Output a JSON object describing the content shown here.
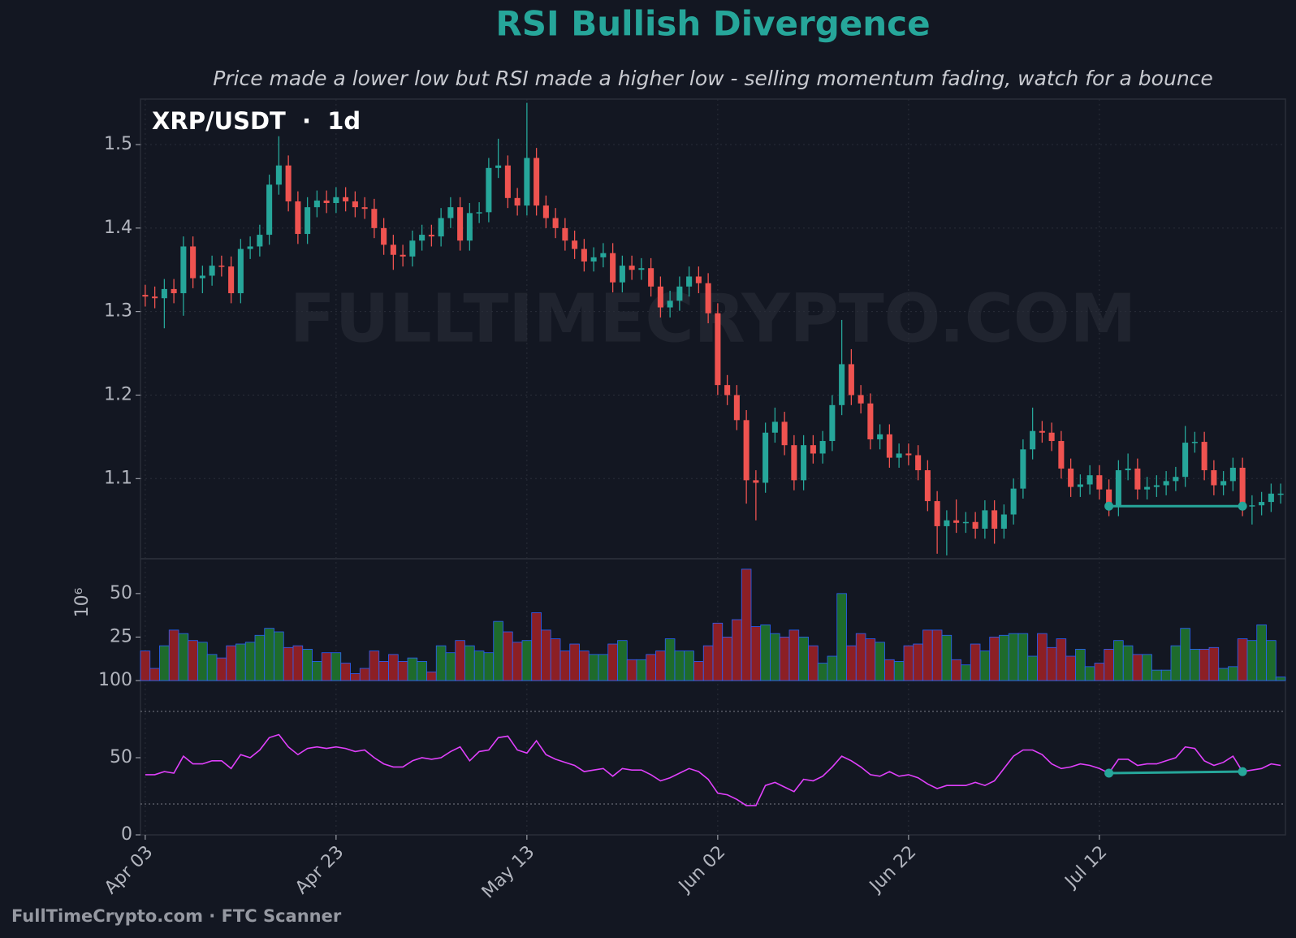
{
  "chart_data": {
    "type": "candlestick",
    "title": "RSI Bullish Divergence",
    "subtitle": "Price made a lower low but RSI made a higher low - selling momentum fading, watch for a bounce",
    "panel_label": "XRP/USDT  ·  1d",
    "watermark": "FULLTIMECRYPTO.COM",
    "footer": "FullTimeCrypto.com · FTC Scanner",
    "categories": [
      "Apr 03",
      null,
      null,
      null,
      null,
      null,
      null,
      null,
      null,
      null,
      null,
      null,
      null,
      null,
      null,
      null,
      null,
      null,
      null,
      null,
      "Apr 23",
      null,
      null,
      null,
      null,
      null,
      null,
      null,
      null,
      null,
      null,
      null,
      null,
      null,
      null,
      null,
      null,
      null,
      null,
      null,
      "May 13",
      null,
      null,
      null,
      null,
      null,
      null,
      null,
      null,
      null,
      null,
      null,
      null,
      null,
      null,
      null,
      null,
      null,
      null,
      null,
      "Jun 02",
      null,
      null,
      null,
      null,
      null,
      null,
      null,
      null,
      null,
      null,
      null,
      null,
      null,
      null,
      null,
      null,
      null,
      null,
      null,
      "Jun 22",
      null,
      null,
      null,
      null,
      null,
      null,
      null,
      null,
      null,
      null,
      null,
      null,
      null,
      null,
      null,
      null,
      null,
      null,
      null,
      "Jul 12",
      null,
      null,
      null,
      null,
      null,
      null,
      null,
      null,
      null,
      null,
      null,
      null,
      null,
      null,
      null,
      null,
      null,
      null,
      null
    ],
    "open": [
      1.32,
      1.318,
      1.316,
      1.327,
      1.322,
      1.378,
      1.34,
      1.343,
      1.355,
      1.354,
      1.322,
      1.375,
      1.378,
      1.392,
      1.452,
      1.475,
      1.432,
      1.393,
      1.425,
      1.433,
      1.43,
      1.437,
      1.432,
      1.425,
      1.423,
      1.4,
      1.38,
      1.368,
      1.366,
      1.385,
      1.392,
      1.39,
      1.412,
      1.425,
      1.385,
      1.418,
      1.419,
      1.472,
      1.475,
      1.436,
      1.427,
      1.484,
      1.427,
      1.412,
      1.4,
      1.385,
      1.375,
      1.36,
      1.365,
      1.37,
      1.335,
      1.355,
      1.35,
      1.352,
      1.33,
      1.305,
      1.313,
      1.33,
      1.342,
      1.334,
      1.298,
      1.212,
      1.2,
      1.17,
      1.098,
      1.095,
      1.155,
      1.168,
      1.14,
      1.098,
      1.14,
      1.13,
      1.145,
      1.188,
      1.237,
      1.2,
      1.19,
      1.147,
      1.153,
      1.125,
      1.13,
      1.128,
      1.11,
      1.073,
      1.043,
      1.05,
      1.047,
      1.048,
      1.04,
      1.062,
      1.04,
      1.057,
      1.088,
      1.135,
      1.157,
      1.155,
      1.145,
      1.112,
      1.09,
      1.093,
      1.104,
      1.087,
      1.067,
      1.11,
      1.112,
      1.087,
      1.09,
      1.092,
      1.097,
      1.102,
      1.143,
      1.144,
      1.11,
      1.092,
      1.097,
      1.113,
      1.067,
      1.068,
      1.072,
      1.082
    ],
    "high": [
      1.332,
      1.33,
      1.339,
      1.339,
      1.39,
      1.39,
      1.355,
      1.367,
      1.367,
      1.366,
      1.387,
      1.39,
      1.404,
      1.464,
      1.51,
      1.487,
      1.444,
      1.437,
      1.445,
      1.445,
      1.449,
      1.449,
      1.444,
      1.437,
      1.435,
      1.412,
      1.392,
      1.38,
      1.397,
      1.404,
      1.404,
      1.424,
      1.437,
      1.437,
      1.43,
      1.431,
      1.484,
      1.507,
      1.487,
      1.448,
      1.55,
      1.496,
      1.439,
      1.424,
      1.412,
      1.397,
      1.387,
      1.377,
      1.382,
      1.382,
      1.367,
      1.367,
      1.364,
      1.364,
      1.342,
      1.325,
      1.342,
      1.354,
      1.354,
      1.346,
      1.31,
      1.224,
      1.212,
      1.182,
      1.11,
      1.167,
      1.185,
      1.18,
      1.152,
      1.152,
      1.152,
      1.157,
      1.2,
      1.29,
      1.255,
      1.212,
      1.202,
      1.165,
      1.165,
      1.142,
      1.142,
      1.14,
      1.122,
      1.085,
      1.062,
      1.075,
      1.06,
      1.06,
      1.074,
      1.074,
      1.069,
      1.1,
      1.147,
      1.185,
      1.169,
      1.167,
      1.157,
      1.124,
      1.105,
      1.116,
      1.116,
      1.099,
      1.122,
      1.13,
      1.124,
      1.102,
      1.104,
      1.109,
      1.114,
      1.163,
      1.156,
      1.156,
      1.122,
      1.109,
      1.125,
      1.125,
      1.08,
      1.084,
      1.094,
      1.094
    ],
    "low": [
      1.306,
      1.304,
      1.28,
      1.31,
      1.295,
      1.328,
      1.322,
      1.331,
      1.342,
      1.31,
      1.31,
      1.363,
      1.366,
      1.38,
      1.44,
      1.42,
      1.381,
      1.381,
      1.413,
      1.418,
      1.418,
      1.42,
      1.413,
      1.411,
      1.388,
      1.368,
      1.35,
      1.354,
      1.354,
      1.373,
      1.378,
      1.378,
      1.4,
      1.373,
      1.373,
      1.406,
      1.407,
      1.46,
      1.424,
      1.415,
      1.415,
      1.415,
      1.4,
      1.388,
      1.373,
      1.363,
      1.348,
      1.348,
      1.353,
      1.323,
      1.323,
      1.338,
      1.338,
      1.318,
      1.293,
      1.293,
      1.301,
      1.318,
      1.322,
      1.286,
      1.2,
      1.188,
      1.158,
      1.07,
      1.05,
      1.083,
      1.143,
      1.128,
      1.086,
      1.086,
      1.118,
      1.118,
      1.133,
      1.176,
      1.188,
      1.178,
      1.135,
      1.135,
      1.113,
      1.113,
      1.116,
      1.098,
      1.061,
      1.01,
      1.008,
      1.035,
      1.035,
      1.028,
      1.028,
      1.022,
      1.028,
      1.045,
      1.076,
      1.123,
      1.143,
      1.133,
      1.1,
      1.078,
      1.078,
      1.081,
      1.075,
      1.055,
      1.055,
      1.098,
      1.075,
      1.075,
      1.078,
      1.08,
      1.085,
      1.09,
      1.131,
      1.098,
      1.08,
      1.08,
      1.085,
      1.055,
      1.045,
      1.056,
      1.06,
      1.07
    ],
    "close": [
      1.318,
      1.316,
      1.327,
      1.322,
      1.378,
      1.34,
      1.343,
      1.355,
      1.354,
      1.322,
      1.375,
      1.378,
      1.392,
      1.452,
      1.475,
      1.432,
      1.393,
      1.425,
      1.433,
      1.43,
      1.437,
      1.432,
      1.425,
      1.423,
      1.4,
      1.38,
      1.368,
      1.366,
      1.385,
      1.392,
      1.39,
      1.412,
      1.425,
      1.385,
      1.418,
      1.419,
      1.472,
      1.475,
      1.436,
      1.427,
      1.484,
      1.427,
      1.412,
      1.4,
      1.385,
      1.375,
      1.36,
      1.365,
      1.37,
      1.335,
      1.355,
      1.35,
      1.352,
      1.33,
      1.305,
      1.313,
      1.33,
      1.342,
      1.334,
      1.298,
      1.212,
      1.2,
      1.17,
      1.098,
      1.095,
      1.155,
      1.168,
      1.14,
      1.098,
      1.14,
      1.13,
      1.145,
      1.188,
      1.237,
      1.2,
      1.19,
      1.147,
      1.153,
      1.125,
      1.13,
      1.128,
      1.11,
      1.073,
      1.043,
      1.05,
      1.047,
      1.048,
      1.04,
      1.062,
      1.04,
      1.057,
      1.088,
      1.135,
      1.157,
      1.155,
      1.145,
      1.112,
      1.09,
      1.093,
      1.104,
      1.087,
      1.067,
      1.11,
      1.112,
      1.087,
      1.09,
      1.092,
      1.097,
      1.102,
      1.143,
      1.144,
      1.11,
      1.092,
      1.097,
      1.113,
      1.067,
      1.068,
      1.072,
      1.082,
      1.082
    ],
    "up_color": "#26a69a",
    "down_color": "#ef5350",
    "ylim": [
      1.004,
      1.5545
    ],
    "yticks": [
      1.1,
      1.2,
      1.3,
      1.4,
      1.5
    ],
    "grid": true,
    "divergence": [
      101,
      115
    ],
    "divergence_color": "#26a69a",
    "volume": {
      "ylabel": "10⁶",
      "values": [
        17,
        7,
        20,
        29,
        27,
        23,
        22,
        15,
        13,
        20,
        21,
        22,
        26,
        30,
        28,
        19,
        20,
        18,
        11,
        16,
        16,
        10,
        4,
        7,
        17,
        11,
        15,
        11,
        13,
        11,
        5,
        20,
        16,
        23,
        20,
        17,
        16,
        34,
        28,
        22,
        23,
        39,
        29,
        24,
        17,
        21,
        17,
        15,
        15,
        21,
        23,
        12,
        12,
        15,
        17,
        24,
        17,
        17,
        11,
        20,
        33,
        25,
        35,
        64,
        31,
        32,
        27,
        25,
        29,
        25,
        20,
        10,
        14,
        50,
        20,
        27,
        24,
        22,
        12,
        11,
        20,
        21,
        29,
        29,
        26,
        12,
        9,
        21,
        17,
        25,
        26,
        27,
        27,
        14,
        27,
        19,
        24,
        14,
        18,
        8,
        10,
        18,
        23,
        20,
        15,
        15,
        6,
        6,
        20,
        30,
        18,
        18,
        19,
        7,
        8,
        24,
        23,
        32,
        23,
        2
      ],
      "ylim": [
        0,
        70
      ],
      "yticks": [
        25,
        50
      ],
      "up_color": "#1e6b2c",
      "down_color": "#8c1f25",
      "edge_color": "#2962ff"
    },
    "rsi": {
      "values": [
        39,
        39,
        41,
        40,
        51,
        46,
        46,
        48,
        48,
        43,
        52,
        50,
        55,
        63,
        65,
        57,
        52,
        56,
        57,
        56,
        57,
        56,
        54,
        55,
        50,
        46,
        44,
        44,
        48,
        50,
        49,
        50,
        54,
        57,
        48,
        54,
        55,
        63,
        64,
        55,
        53,
        61,
        52,
        49,
        47,
        45,
        41,
        42,
        43,
        38,
        43,
        42,
        42,
        39,
        35,
        37,
        40,
        43,
        41,
        36,
        27,
        26,
        23,
        19,
        19,
        32,
        34,
        31,
        28,
        36,
        35,
        38,
        44,
        51,
        48,
        44,
        39,
        38,
        41,
        38,
        39,
        37,
        33,
        30,
        32,
        32,
        32,
        34,
        32,
        35,
        43,
        51,
        55,
        55,
        52,
        46,
        43,
        44,
        46,
        45,
        43,
        40,
        49,
        49,
        45,
        46,
        46,
        48,
        50,
        57,
        56,
        48,
        45,
        47,
        51,
        41,
        42,
        43,
        46,
        45
      ],
      "ylim": [
        0,
        100
      ],
      "yticks": [
        0,
        50,
        100
      ],
      "levels": [
        20,
        80
      ],
      "color": "#e040fb"
    }
  }
}
